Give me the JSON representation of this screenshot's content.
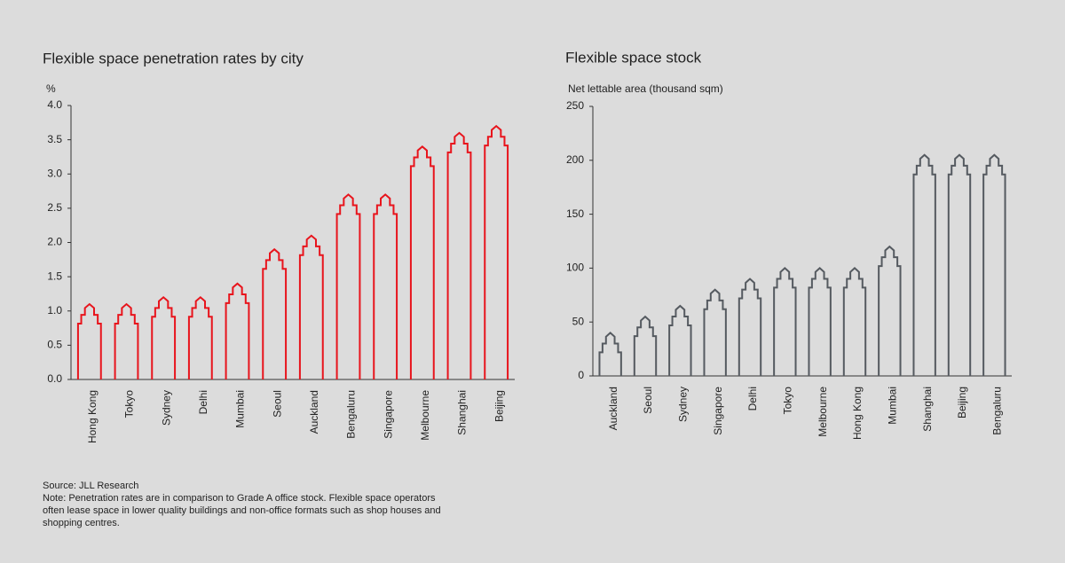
{
  "chart_data": [
    {
      "type": "bar",
      "title": "Flexible space penetration rates by city",
      "y_label": "%",
      "categories": [
        "Hong Kong",
        "Tokyo",
        "Sydney",
        "Delhi",
        "Mumbai",
        "Seoul",
        "Auckland",
        "Bengaluru",
        "Singapore",
        "Melbourne",
        "Shanghai",
        "Beijing"
      ],
      "values": [
        1.1,
        1.1,
        1.2,
        1.2,
        1.4,
        1.9,
        2.1,
        2.7,
        2.7,
        3.4,
        3.6,
        3.7
      ],
      "color": "#e8141c",
      "ylim": [
        0,
        4
      ],
      "yticks": [
        {
          "value": 0,
          "label": "0.0"
        },
        0.5,
        {
          "value": 1,
          "label": "1.0"
        },
        1.5,
        {
          "value": 2,
          "label": "2.0"
        },
        2.5,
        {
          "value": 3,
          "label": "3.0"
        },
        3.5,
        {
          "value": 4,
          "label": "4.0"
        }
      ]
    },
    {
      "type": "bar",
      "title": "Flexible space stock",
      "y_label": "Net lettable area (thousand sqm)",
      "categories": [
        "Auckland",
        "Seoul",
        "Sydney",
        "Singapore",
        "Delhi",
        "Tokyo",
        "Melbourne",
        "Hong Kong",
        "Mumbai",
        "Shanghai",
        "Beijing",
        "Bengaluru"
      ],
      "values": [
        40,
        55,
        65,
        80,
        90,
        100,
        100,
        100,
        120,
        205,
        205,
        205
      ],
      "color": "#555a60",
      "ylim": [
        0,
        250
      ],
      "yticks": [
        0,
        50,
        100,
        150,
        200,
        250
      ]
    }
  ],
  "notes": {
    "source": "Source: JLL Research",
    "note_lines": [
      "Note: Penetration rates are in comparison to Grade A office stock. Flexible space operators",
      "often lease space in lower quality buildings and non-office formats such as shop houses and",
      "shopping centres."
    ]
  }
}
